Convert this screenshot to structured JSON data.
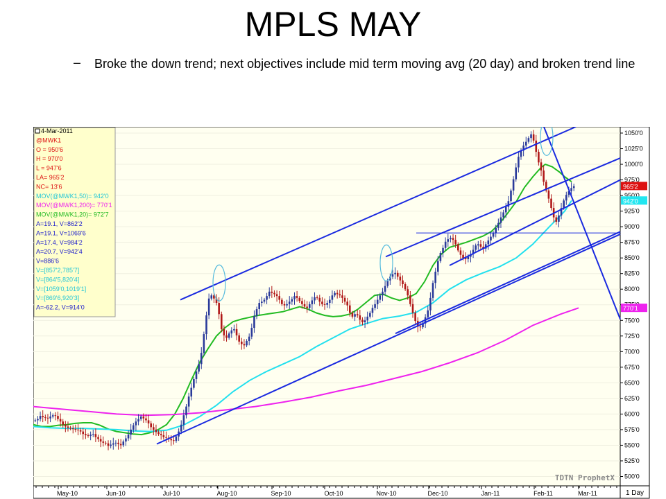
{
  "slide": {
    "title": "MPLS MAY",
    "bullet_dash": "–",
    "bullet": "Broke the down trend; next objectives include mid term moving avg (20 day) and broken trend line"
  },
  "chart_data": {
    "type": "candlestick",
    "watermark": "TDTN ProphetX",
    "interval": "1 Day",
    "x_labels": [
      "May-10",
      "Jun-10",
      "Jul-10",
      "Aug-10",
      "Sep-10",
      "Oct-10",
      "Nov-10",
      "Dec-10",
      "Jan-11",
      "Feb-11",
      "Mar-11"
    ],
    "y_ticks": [
      "1050'0",
      "1025'0",
      "1000'0",
      "975'0",
      "950'0",
      "925'0",
      "900'0",
      "875'0",
      "850'0",
      "825'0",
      "800'0",
      "775'0",
      "750'0",
      "725'0",
      "700'0",
      "675'0",
      "650'0",
      "625'0",
      "600'0",
      "575'0",
      "550'0",
      "525'0",
      "500'0"
    ],
    "ylim": [
      485,
      1060
    ],
    "price_markers": [
      {
        "label": "965'2",
        "value": 965.25,
        "color": "#dd1111"
      },
      {
        "label": "942'0",
        "value": 942,
        "color": "#22e6f0"
      },
      {
        "label": "770'1",
        "value": 770.1,
        "color": "#ee22ee"
      }
    ],
    "info_box": [
      {
        "text": "4-Mar-2011",
        "color": "#000000"
      },
      {
        "text": "@MWK1",
        "color": "#dd1111"
      },
      {
        "text": "O = 950'6",
        "color": "#dd1111"
      },
      {
        "text": "H = 970'0",
        "color": "#dd1111"
      },
      {
        "text": "L = 947'6",
        "color": "#dd1111"
      },
      {
        "text": "LA= 965'2",
        "color": "#dd1111"
      },
      {
        "text": "NC= 13'6",
        "color": "#dd1111"
      },
      {
        "text": "MOV(@MWK1,50)= 942'0",
        "color": "#22c6d6"
      },
      {
        "text": "MOV(@MWK1,200)= 770'1",
        "color": "#ee22ee"
      },
      {
        "text": "MOV(@MWK1,20)= 972'7",
        "color": "#22bb22"
      },
      {
        "text": "A=19.1, V=862'2",
        "color": "#2222cc"
      },
      {
        "text": "A=19.1, V=1069'6",
        "color": "#2222cc"
      },
      {
        "text": "A=17.4, V=984'2",
        "color": "#2222cc"
      },
      {
        "text": "A=20.7, V=942'4",
        "color": "#2222cc"
      },
      {
        "text": "V=886'6",
        "color": "#2222cc"
      },
      {
        "text": "V=[857'2,785'7]",
        "color": "#22c6d6"
      },
      {
        "text": "V=[864'5,820'4]",
        "color": "#22c6d6"
      },
      {
        "text": "V=[1059'0,1019'1]",
        "color": "#22c6d6"
      },
      {
        "text": "V=[869'6,920'3]",
        "color": "#22c6d6"
      },
      {
        "text": "A=-62.2, V=914'0",
        "color": "#2222cc"
      }
    ],
    "series_colors": {
      "bull": "#2a3a9a",
      "bear": "#b01818",
      "ma20": "#22bb22",
      "ma50": "#22e0ee",
      "ma200": "#ee22ee",
      "trend": "#1a2ae0"
    },
    "moving_averages": [
      {
        "name": "MOV(@MWK1,20)",
        "color": "#22bb22",
        "points": [
          [
            0,
            583
          ],
          [
            12,
            580
          ],
          [
            24,
            580
          ],
          [
            36,
            582
          ],
          [
            48,
            583
          ],
          [
            60,
            585
          ],
          [
            72,
            586
          ],
          [
            84,
            586
          ],
          [
            96,
            582
          ],
          [
            108,
            576
          ],
          [
            120,
            572
          ],
          [
            132,
            570
          ],
          [
            144,
            568
          ],
          [
            156,
            567
          ],
          [
            168,
            570
          ],
          [
            180,
            575
          ],
          [
            192,
            583
          ],
          [
            204,
            600
          ],
          [
            216,
            625
          ],
          [
            228,
            655
          ],
          [
            240,
            683
          ],
          [
            252,
            705
          ],
          [
            264,
            725
          ],
          [
            276,
            738
          ],
          [
            288,
            748
          ],
          [
            300,
            752
          ],
          [
            312,
            755
          ],
          [
            324,
            758
          ],
          [
            336,
            760
          ],
          [
            348,
            762
          ],
          [
            360,
            764
          ],
          [
            372,
            768
          ],
          [
            384,
            772
          ],
          [
            396,
            768
          ],
          [
            408,
            762
          ],
          [
            420,
            758
          ],
          [
            432,
            756
          ],
          [
            444,
            757
          ],
          [
            456,
            760
          ],
          [
            468,
            768
          ],
          [
            480,
            779
          ],
          [
            492,
            790
          ],
          [
            504,
            792
          ],
          [
            516,
            786
          ],
          [
            528,
            782
          ],
          [
            540,
            786
          ],
          [
            552,
            793
          ],
          [
            564,
            812
          ],
          [
            576,
            838
          ],
          [
            588,
            856
          ],
          [
            600,
            867
          ],
          [
            612,
            871
          ],
          [
            624,
            875
          ],
          [
            636,
            880
          ],
          [
            648,
            885
          ],
          [
            660,
            892
          ],
          [
            672,
            905
          ],
          [
            684,
            922
          ],
          [
            696,
            940
          ],
          [
            708,
            963
          ],
          [
            720,
            980
          ],
          [
            732,
            995
          ],
          [
            738,
            1000
          ],
          [
            748,
            996
          ],
          [
            758,
            988
          ],
          [
            766,
            980
          ],
          [
            776,
            972
          ]
        ]
      },
      {
        "name": "MOV(@MWK1,50)",
        "color": "#22e0ee",
        "points": [
          [
            0,
            580
          ],
          [
            24,
            578
          ],
          [
            48,
            577
          ],
          [
            72,
            577
          ],
          [
            96,
            576
          ],
          [
            120,
            575
          ],
          [
            144,
            573
          ],
          [
            168,
            572
          ],
          [
            192,
            574
          ],
          [
            216,
            582
          ],
          [
            240,
            596
          ],
          [
            264,
            614
          ],
          [
            288,
            636
          ],
          [
            312,
            654
          ],
          [
            336,
            668
          ],
          [
            360,
            680
          ],
          [
            384,
            692
          ],
          [
            408,
            708
          ],
          [
            432,
            722
          ],
          [
            456,
            736
          ],
          [
            480,
            745
          ],
          [
            504,
            753
          ],
          [
            528,
            757
          ],
          [
            552,
            763
          ],
          [
            576,
            778
          ],
          [
            600,
            800
          ],
          [
            624,
            815
          ],
          [
            648,
            826
          ],
          [
            672,
            836
          ],
          [
            696,
            850
          ],
          [
            720,
            872
          ],
          [
            744,
            900
          ],
          [
            766,
            925
          ],
          [
            776,
            942
          ]
        ]
      },
      {
        "name": "MOV(@MWK1,200)",
        "color": "#ee22ee",
        "points": [
          [
            0,
            612
          ],
          [
            40,
            608
          ],
          [
            80,
            604
          ],
          [
            120,
            600
          ],
          [
            160,
            598
          ],
          [
            200,
            599
          ],
          [
            240,
            602
          ],
          [
            280,
            607
          ],
          [
            320,
            612
          ],
          [
            360,
            619
          ],
          [
            400,
            627
          ],
          [
            440,
            637
          ],
          [
            480,
            646
          ],
          [
            520,
            657
          ],
          [
            560,
            668
          ],
          [
            600,
            682
          ],
          [
            640,
            698
          ],
          [
            680,
            718
          ],
          [
            720,
            742
          ],
          [
            760,
            760
          ],
          [
            786,
            770
          ]
        ]
      }
    ],
    "trendlines": [
      {
        "name": "upper-channel",
        "points": [
          [
            212,
            783
          ],
          [
            782,
            1060
          ]
        ]
      },
      {
        "name": "inner-upper",
        "points": [
          [
            508,
            852
          ],
          [
            846,
            1010
          ]
        ]
      },
      {
        "name": "inner-lower",
        "points": [
          [
            600,
            838
          ],
          [
            846,
            975
          ]
        ]
      },
      {
        "name": "lower-channel",
        "points": [
          [
            178,
            552
          ],
          [
            846,
            888
          ]
        ]
      },
      {
        "name": "support-lower",
        "points": [
          [
            522,
            729
          ],
          [
            846,
            892
          ]
        ]
      },
      {
        "name": "horizontal",
        "points": [
          [
            552,
            890
          ],
          [
            846,
            890
          ]
        ]
      },
      {
        "name": "down-trend",
        "points": [
          [
            736,
            1060
          ],
          [
            846,
            752
          ]
        ]
      }
    ],
    "highlight_ellipses": [
      {
        "x": 268,
        "y": 810
      },
      {
        "x": 509,
        "y": 842
      },
      {
        "x": 740,
        "y": 1043
      }
    ],
    "candles_closes": [
      590,
      592,
      597,
      595,
      594,
      593,
      596,
      598,
      597,
      592,
      588,
      583,
      580,
      578,
      577,
      576,
      575,
      574,
      572,
      568,
      566,
      565,
      567,
      568,
      563,
      560,
      556,
      554,
      553,
      549,
      551,
      553,
      554,
      552,
      550,
      556,
      561,
      567,
      575,
      582,
      588,
      592,
      596,
      593,
      590,
      585,
      579,
      575,
      571,
      568,
      566,
      563,
      562,
      560,
      558,
      557,
      564,
      572,
      583,
      598,
      612,
      628,
      642,
      656,
      668,
      680,
      698,
      728,
      758,
      785,
      790,
      785,
      778,
      760,
      736,
      726,
      722,
      729,
      734,
      736,
      726,
      716,
      712,
      710,
      717,
      724,
      738,
      757,
      768,
      778,
      780,
      783,
      789,
      796,
      794,
      792,
      789,
      783,
      776,
      774,
      776,
      780,
      784,
      789,
      786,
      781,
      776,
      772,
      770,
      776,
      782,
      787,
      786,
      780,
      776,
      775,
      778,
      783,
      790,
      794,
      792,
      790,
      786,
      780,
      774,
      762,
      756,
      760,
      758,
      751,
      747,
      750,
      756,
      762,
      770,
      776,
      783,
      790,
      796,
      805,
      814,
      820,
      824,
      826,
      820,
      814,
      808,
      800,
      790,
      776,
      762,
      749,
      740,
      739,
      745,
      755,
      766,
      786,
      810,
      828,
      845,
      858,
      866,
      876,
      880,
      882,
      879,
      872,
      862,
      855,
      850,
      848,
      852,
      856,
      863,
      870,
      872,
      868,
      865,
      872,
      878,
      884,
      890,
      898,
      906,
      915,
      923,
      932,
      941,
      958,
      976,
      995,
      1012,
      1022,
      1030,
      1036,
      1042,
      1048,
      1038,
      1020,
      1003,
      990,
      972,
      958,
      945,
      930,
      915,
      908,
      918,
      930,
      942,
      951,
      957,
      962,
      965
    ]
  }
}
